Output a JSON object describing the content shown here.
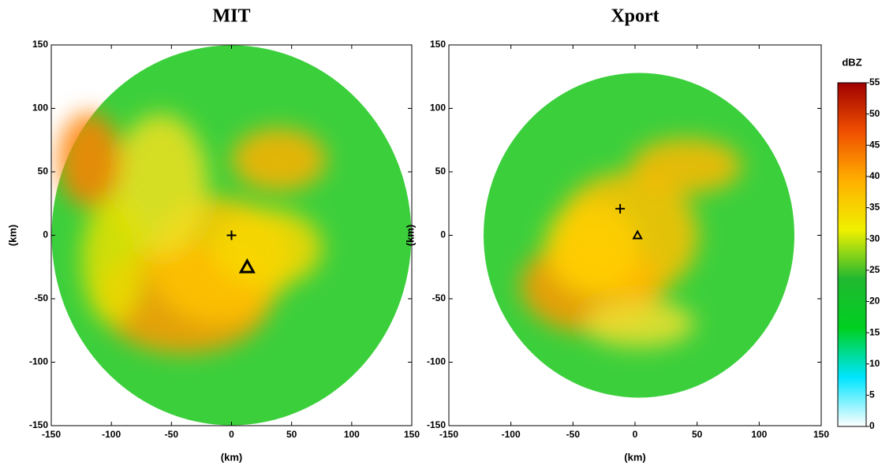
{
  "chart_data": [
    {
      "type": "image",
      "title": "MIT",
      "xlabel": "(km)",
      "ylabel": "(km)",
      "xlim": [
        -150,
        150
      ],
      "ylim": [
        -150,
        150
      ],
      "xticks": [
        -150,
        -100,
        -50,
        0,
        50,
        100,
        150
      ],
      "yticks": [
        -150,
        -100,
        -50,
        0,
        50,
        100,
        150
      ],
      "markers": [
        {
          "shape": "plus",
          "x": 0,
          "y": 0
        },
        {
          "shape": "triangle",
          "x": 13,
          "y": -25
        }
      ]
    },
    {
      "type": "image",
      "title": "Xport",
      "xlabel": "(km)",
      "ylabel": "(km)",
      "xlim": [
        -150,
        150
      ],
      "ylim": [
        -150,
        150
      ],
      "xticks": [
        -150,
        -100,
        -50,
        0,
        50,
        100,
        150
      ],
      "yticks": [
        -150,
        -100,
        -50,
        0,
        50,
        100,
        150
      ],
      "markers": [
        {
          "shape": "plus",
          "x": -12,
          "y": 21
        },
        {
          "shape": "triangle",
          "x": 2,
          "y": 0
        }
      ]
    },
    {
      "type": "colorbar",
      "title": "dBZ",
      "ylim": [
        0,
        55
      ],
      "yticks": [
        0,
        5,
        10,
        15,
        20,
        25,
        30,
        35,
        40,
        45,
        50,
        55
      ],
      "colors": [
        "#ffffff",
        "#00e5ff",
        "#00d020",
        "#20b830",
        "#f0f000",
        "#ffb000",
        "#f05000",
        "#a00000"
      ]
    }
  ]
}
